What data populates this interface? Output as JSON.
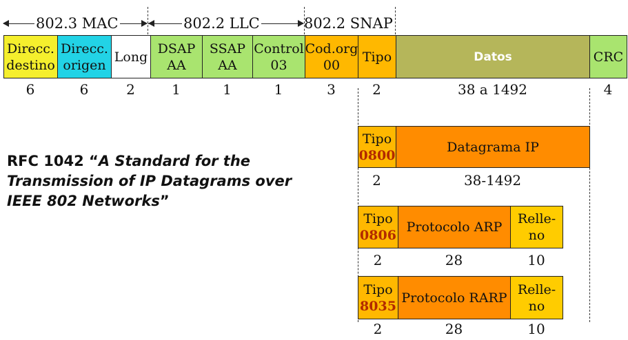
{
  "ranges": {
    "mac": "802.3 MAC",
    "llc": "802.2 LLC",
    "snap": "802.2 SNAP"
  },
  "frame": {
    "fields": [
      {
        "line1": "Direcc.",
        "line2": "destino",
        "size": "6",
        "color": "#f5ef2d"
      },
      {
        "line1": "Direcc.",
        "line2": "origen",
        "size": "6",
        "color": "#22d3e6"
      },
      {
        "line1": "Long",
        "line2": "",
        "size": "2",
        "color": "#ffffff"
      },
      {
        "line1": "DSAP",
        "line2": "AA",
        "size": "1",
        "color": "#a9e46f"
      },
      {
        "line1": "SSAP",
        "line2": "AA",
        "size": "1",
        "color": "#a9e46f"
      },
      {
        "line1": "Control",
        "line2": "03",
        "size": "1",
        "color": "#a9e46f"
      },
      {
        "line1": "Cod.org",
        "line2": "00",
        "size": "3",
        "color": "#ffb800"
      },
      {
        "line1": "Tipo",
        "line2": "",
        "size": "2",
        "color": "#ffb800"
      },
      {
        "line1": "Datos",
        "line2": "",
        "size": "38 a 1492",
        "color": "#b5b65a"
      },
      {
        "line1": "CRC",
        "line2": "",
        "size": "4",
        "color": "#a9e46f"
      }
    ]
  },
  "rfc": {
    "prefix": "RFC 1042 “",
    "title": "A Standard for the Transmission of IP Datagrams over IEEE 802 Networks",
    "suffix": "”"
  },
  "encaps": [
    {
      "tipo": "Tipo",
      "code": "0800",
      "payload": "Datagrama IP",
      "pad": "",
      "sizes": [
        "2",
        "38-1492",
        ""
      ]
    },
    {
      "tipo": "Tipo",
      "code": "0806",
      "payload": "Protocolo ARP",
      "pad": "Relle-\nno",
      "sizes": [
        "2",
        "28",
        "10"
      ]
    },
    {
      "tipo": "Tipo",
      "code": "8035",
      "payload": "Protocolo RARP",
      "pad": "Relle-\nno",
      "sizes": [
        "2",
        "28",
        "10"
      ]
    }
  ],
  "colors": {
    "tipo_box": "#ffb800",
    "payload_box": "#ff8c00",
    "pad_box": "#ffcc00",
    "type_code": "#b22a00"
  }
}
